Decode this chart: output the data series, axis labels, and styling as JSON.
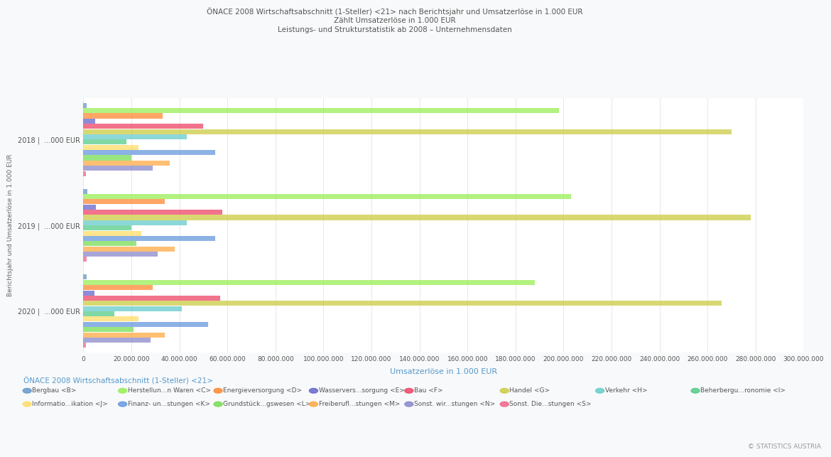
{
  "title_line1": "ÖNACE 2008 Wirtschaftsabschnitt (1-Steller) <21> nach Berichtsjahr und Umsatzerlöse in 1.000 EUR",
  "title_line2": "Zählt Umsatzerlöse in 1.000 EUR",
  "title_line3": "Leistungs- und Strukturstatistik ab 2008 – Unternehmensdaten",
  "xlabel": "Umsatzerlöse in 1.000 EUR",
  "ylabel": "Berichtsjahr und Umsatzerlöse in 1.000 EUR",
  "legend_title": "ÖNACE 2008 Wirtschaftsabschnitt (1-Steller) <21>",
  "copyright": "© STATISTICS AUSTRIA",
  "year_labels": [
    "2018 |  ...000 EUR",
    "2019 |  ...000 EUR",
    "2020 |  ...000 EUR"
  ],
  "xlim": [
    0,
    300000000
  ],
  "xticks": [
    0,
    20000000,
    40000000,
    60000000,
    80000000,
    100000000,
    120000000,
    140000000,
    160000000,
    180000000,
    200000000,
    220000000,
    240000000,
    260000000,
    280000000,
    300000000
  ],
  "xtick_labels": [
    "0",
    "20.000.000",
    "40.000.000",
    "60.000.000",
    "80.000.000",
    "100.000.000",
    "120.000.000",
    "140.000.000",
    "160.000.000",
    "180.000.000",
    "200.000.000",
    "220.000.000",
    "240.000.000",
    "260.000.000",
    "280.000.000",
    "300.000.000"
  ],
  "categories": [
    {
      "name": "Bergbau <B>",
      "color": "#6699cc"
    },
    {
      "name": "Herstellun...n Waren <C>",
      "color": "#99ee55"
    },
    {
      "name": "Energieversorgung <D>",
      "color": "#ff8833"
    },
    {
      "name": "Wasservers...sorgung <E>",
      "color": "#6666cc"
    },
    {
      "name": "Bau <F>",
      "color": "#ee4466"
    },
    {
      "name": "Handel <G>",
      "color": "#cccc44"
    },
    {
      "name": "Verkehr <H>",
      "color": "#66cccc"
    },
    {
      "name": "Beherbergu...ronomie <I>",
      "color": "#55cc88"
    },
    {
      "name": "Informatio...ikation <J>",
      "color": "#ffdd66"
    },
    {
      "name": "Finanz- un...stungen <K>",
      "color": "#6699dd"
    },
    {
      "name": "Grundstück...gswesen <L>",
      "color": "#77dd55"
    },
    {
      "name": "Freiberufl...stungen <M>",
      "color": "#ffaa44"
    },
    {
      "name": "Sonst. wir...stungen <N>",
      "color": "#8888cc"
    },
    {
      "name": "Sonst. Die...stungen <S>",
      "color": "#ee6688"
    }
  ],
  "data": {
    "2018": [
      1500000,
      198000000,
      33000000,
      5000000,
      50000000,
      270000000,
      43000000,
      18000000,
      23000000,
      55000000,
      20000000,
      36000000,
      29000000,
      1200000
    ],
    "2019": [
      1600000,
      203000000,
      34000000,
      5200000,
      58000000,
      278000000,
      43000000,
      20000000,
      24000000,
      55000000,
      22000000,
      38000000,
      31000000,
      1300000
    ],
    "2020": [
      1300000,
      188000000,
      29000000,
      4500000,
      57000000,
      266000000,
      41000000,
      13000000,
      23000000,
      52000000,
      21000000,
      34000000,
      28000000,
      1100000
    ]
  },
  "background_color": "#f8f9fa",
  "plot_bg_color": "#ffffff",
  "grid_color": "#dddddd"
}
